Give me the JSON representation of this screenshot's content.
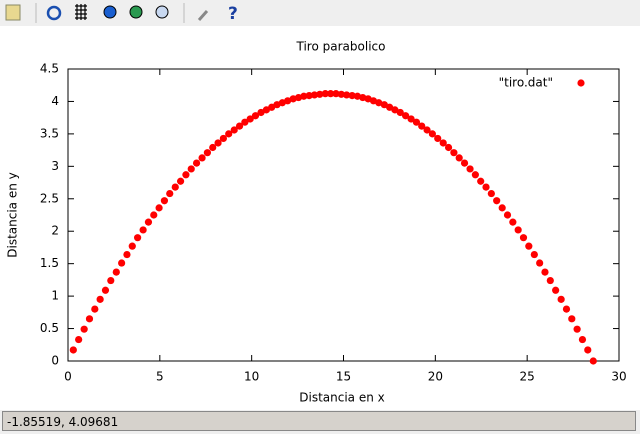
{
  "chart_data": {
    "type": "scatter",
    "title": "Tiro parabolico",
    "x_label": "Distancia en x",
    "y_label": "Distancia en y",
    "xlim": [
      0,
      30
    ],
    "xticks": [
      0,
      5,
      10,
      15,
      20,
      25,
      30
    ],
    "ylim": [
      0,
      4.5
    ],
    "yticks": [
      0,
      0.5,
      1,
      1.5,
      2,
      2.5,
      3,
      3.5,
      4,
      4.5
    ],
    "legend": "top-right",
    "series": [
      {
        "name": "\"tiro.dat\"",
        "color": "#ff0000",
        "x": [
          0.29,
          0.58,
          0.88,
          1.17,
          1.46,
          1.75,
          2.04,
          2.33,
          2.63,
          2.92,
          3.21,
          3.5,
          3.79,
          4.09,
          4.38,
          4.67,
          4.96,
          5.25,
          5.54,
          5.84,
          6.13,
          6.42,
          6.71,
          7.0,
          7.3,
          7.59,
          7.88,
          8.17,
          8.46,
          8.75,
          9.05,
          9.34,
          9.63,
          9.92,
          10.21,
          10.51,
          10.8,
          11.09,
          11.38,
          11.67,
          11.96,
          12.26,
          12.55,
          12.84,
          13.13,
          13.42,
          13.71,
          14.01,
          14.3,
          14.59,
          14.88,
          15.17,
          15.47,
          15.76,
          16.05,
          16.34,
          16.63,
          16.92,
          17.22,
          17.51,
          17.8,
          18.09,
          18.38,
          18.68,
          18.97,
          19.26,
          19.55,
          19.84,
          20.13,
          20.43,
          20.72,
          21.01,
          21.3,
          21.59,
          21.89,
          22.18,
          22.47,
          22.76,
          23.05,
          23.34,
          23.64,
          23.93,
          24.22,
          24.51,
          24.8,
          25.09,
          25.39,
          25.68,
          25.97,
          26.26,
          26.55,
          26.85,
          27.14,
          27.43,
          27.72,
          28.01,
          28.3,
          28.6
        ],
        "values": [
          0.17,
          0.33,
          0.49,
          0.65,
          0.8,
          0.95,
          1.09,
          1.24,
          1.37,
          1.51,
          1.64,
          1.77,
          1.9,
          2.02,
          2.14,
          2.25,
          2.36,
          2.47,
          2.58,
          2.68,
          2.77,
          2.87,
          2.96,
          3.05,
          3.13,
          3.21,
          3.29,
          3.36,
          3.43,
          3.5,
          3.56,
          3.62,
          3.68,
          3.73,
          3.78,
          3.83,
          3.87,
          3.91,
          3.95,
          3.98,
          4.01,
          4.04,
          4.06,
          4.08,
          4.09,
          4.1,
          4.11,
          4.12,
          4.12,
          4.12,
          4.11,
          4.1,
          4.09,
          4.08,
          4.06,
          4.04,
          4.01,
          3.98,
          3.95,
          3.91,
          3.87,
          3.83,
          3.78,
          3.73,
          3.68,
          3.62,
          3.56,
          3.5,
          3.43,
          3.36,
          3.29,
          3.21,
          3.13,
          3.05,
          2.96,
          2.87,
          2.77,
          2.68,
          2.58,
          2.47,
          2.36,
          2.25,
          2.14,
          2.02,
          1.9,
          1.77,
          1.64,
          1.51,
          1.37,
          1.24,
          1.09,
          0.95,
          0.8,
          0.65,
          0.49,
          0.33,
          0.17,
          0.0
        ]
      }
    ]
  },
  "status_bar": "-1.85519,  4.09681"
}
